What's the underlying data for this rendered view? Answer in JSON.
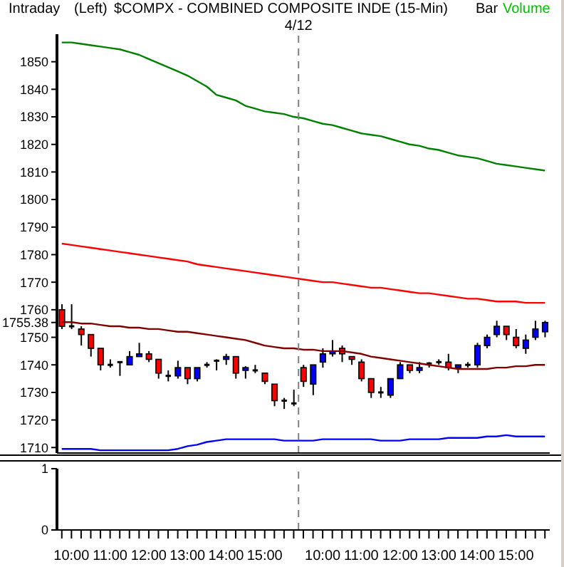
{
  "chart_data": [
    {
      "type": "candlestick",
      "title": "$COMPX - COMBINED COMPOSITE INDE  (15-Min)",
      "annotations": [
        "Intraday",
        "(Left)",
        "Bar",
        "Volume",
        "4/12"
      ],
      "categories": [
        null,
        "10:00",
        null,
        null,
        null,
        "11:00",
        null,
        null,
        null,
        "12:00",
        null,
        null,
        null,
        "13:00",
        null,
        null,
        null,
        "14:00",
        null,
        null,
        null,
        "15:00",
        null,
        null,
        null,
        null,
        null,
        "10:00",
        null,
        null,
        null,
        "11:00",
        null,
        null,
        null,
        "12:00",
        null,
        null,
        null,
        "13:00",
        null,
        null,
        null,
        "14:00",
        null,
        null,
        null,
        "15:00",
        null,
        null,
        null
      ],
      "ohlc": [
        [
          1760,
          1762,
          1753,
          1754
        ],
        [
          1754,
          1762,
          1753,
          1754
        ],
        [
          1753,
          1754,
          1747,
          1751
        ],
        [
          1751,
          1751,
          1743,
          1746
        ],
        [
          1746,
          1746,
          1738,
          1740
        ],
        [
          1740,
          1742,
          1739,
          1740
        ],
        [
          1741,
          1741,
          1736,
          1741
        ],
        [
          1740,
          1745,
          1740,
          1743
        ],
        [
          1743,
          1748,
          1743,
          1744
        ],
        [
          1744,
          1745,
          1741,
          1742
        ],
        [
          1742,
          1742,
          1735,
          1737
        ],
        [
          1736,
          1738,
          1734,
          1736
        ],
        [
          1736,
          1741.5,
          1735,
          1739
        ],
        [
          1739,
          1739,
          1733,
          1735
        ],
        [
          1735,
          1739,
          1734,
          1739
        ],
        [
          1740,
          1741,
          1739,
          1740
        ],
        [
          1741.5,
          1742,
          1738,
          1741.5
        ],
        [
          1742,
          1744,
          1740,
          1743
        ],
        [
          1743,
          1743,
          1735,
          1737
        ],
        [
          1738,
          1739.5,
          1735,
          1739
        ],
        [
          1738,
          1740,
          1737,
          1738
        ],
        [
          1737,
          1737,
          1733,
          1734
        ],
        [
          1733,
          1733,
          1725,
          1727
        ],
        [
          1727,
          1728,
          1724,
          1727
        ],
        [
          1726,
          1731,
          1725,
          1726
        ],
        [
          1739,
          1740,
          1732,
          1734
        ],
        [
          1733,
          1740,
          1729,
          1740
        ],
        [
          1741,
          1746,
          1739,
          1744
        ],
        [
          1744,
          1749,
          1743,
          1745
        ],
        [
          1746,
          1747,
          1741,
          1744
        ],
        [
          1743,
          1743,
          1740,
          1742
        ],
        [
          1741,
          1742,
          1734,
          1735
        ],
        [
          1735,
          1735,
          1728,
          1730
        ],
        [
          1730,
          1732,
          1728,
          1730
        ],
        [
          1729,
          1735,
          1728,
          1735
        ],
        [
          1735,
          1741,
          1735,
          1740
        ],
        [
          1740,
          1740,
          1737,
          1738
        ],
        [
          1738,
          1741,
          1737,
          1739
        ],
        [
          1740.5,
          1741,
          1739,
          1740.5
        ],
        [
          1741,
          1742,
          1740,
          1741
        ],
        [
          1741,
          1744,
          1738,
          1739
        ],
        [
          1739,
          1740,
          1737,
          1740
        ],
        [
          1740,
          1741,
          1739,
          1740
        ],
        [
          1740,
          1748,
          1739,
          1747
        ],
        [
          1747,
          1751,
          1746,
          1750
        ],
        [
          1751,
          1756,
          1750,
          1754
        ],
        [
          1754,
          1754,
          1749,
          1751
        ],
        [
          1750,
          1753,
          1746,
          1747
        ],
        [
          1746,
          1751,
          1744,
          1749
        ],
        [
          1750,
          1756,
          1749,
          1753
        ],
        [
          1752,
          1756,
          1750,
          1755.38
        ]
      ],
      "colors": [
        "#ff0000",
        "#000000",
        "#ff0000",
        "#ff0000",
        "#ff0000",
        "#000000",
        "#000000",
        "#0000ff",
        "#0000ff",
        "#ff0000",
        "#ff0000",
        "#000000",
        "#0000ff",
        "#ff0000",
        "#0000ff",
        "#000000",
        "#000000",
        "#0000ff",
        "#ff0000",
        "#0000ff",
        "#000000",
        "#ff0000",
        "#ff0000",
        "#000000",
        "#000000",
        "#ff0000",
        "#0000ff",
        "#0000ff",
        "#0000ff",
        "#ff0000",
        "#ff0000",
        "#ff0000",
        "#ff0000",
        "#000000",
        "#0000ff",
        "#0000ff",
        "#ff0000",
        "#0000ff",
        "#000000",
        "#000000",
        "#ff0000",
        "#0000ff",
        "#000000",
        "#0000ff",
        "#0000ff",
        "#0000ff",
        "#ff0000",
        "#ff0000",
        "#0000ff",
        "#0000ff",
        "#0000ff"
      ],
      "series": [
        {
          "type": "line",
          "color": "#008000",
          "values": [
            1857,
            1857,
            1856.5,
            1856,
            1855.5,
            1855,
            1854.5,
            1853.5,
            1852.5,
            1851,
            1849.5,
            1848,
            1846.5,
            1845,
            1843,
            1841,
            1838,
            1837,
            1836,
            1834,
            1833,
            1832,
            1831.5,
            1831,
            1830,
            1829.5,
            1828.5,
            1827.5,
            1827,
            1826,
            1825,
            1824,
            1823.5,
            1823,
            1822,
            1821,
            1820,
            1819.5,
            1818.5,
            1818,
            1817,
            1816,
            1815.5,
            1815,
            1814,
            1813,
            1812.5,
            1812,
            1811.5,
            1811,
            1810.5
          ]
        },
        {
          "type": "line",
          "color": "#ff0000",
          "values": [
            1784,
            1783.5,
            1783,
            1782.5,
            1782,
            1781.5,
            1781,
            1780.5,
            1780,
            1779.5,
            1779,
            1778.5,
            1778,
            1777.5,
            1776.5,
            1776,
            1775.5,
            1775,
            1774.5,
            1774,
            1773.5,
            1773,
            1772.5,
            1772,
            1771.5,
            1771,
            1770.5,
            1770,
            1770,
            1769.5,
            1769,
            1768.5,
            1768,
            1768,
            1767.5,
            1767,
            1766.5,
            1766,
            1766,
            1765.5,
            1765,
            1764.5,
            1764,
            1764,
            1763.5,
            1763,
            1763,
            1763,
            1762.5,
            1762.5,
            1762.5
          ]
        },
        {
          "type": "line",
          "color": "#800000",
          "values": [
            1755.5,
            1755.5,
            1755,
            1755,
            1754.5,
            1754,
            1754,
            1753.5,
            1753.5,
            1753,
            1753,
            1752.5,
            1752,
            1752,
            1751.5,
            1751,
            1750.5,
            1750,
            1749.5,
            1749,
            1748,
            1747,
            1746.5,
            1746,
            1746,
            1745.5,
            1745.5,
            1745,
            1745,
            1745,
            1744.5,
            1744,
            1743,
            1742.5,
            1742,
            1741.5,
            1741,
            1740.5,
            1740,
            1739.5,
            1739,
            1738.5,
            1738.5,
            1738.5,
            1738.5,
            1739,
            1739,
            1739.5,
            1739.5,
            1740,
            1740
          ]
        },
        {
          "type": "line",
          "color": "#0000ff",
          "values": [
            1709.5,
            1709.5,
            1709.5,
            1709.5,
            1709,
            1709,
            1709,
            1709,
            1709,
            1709,
            1709,
            1709,
            1709.5,
            1710.5,
            1711,
            1712,
            1712.5,
            1713,
            1713,
            1713,
            1713,
            1713,
            1713,
            1712.5,
            1712.5,
            1712.5,
            1712.5,
            1713,
            1713,
            1713,
            1713,
            1713,
            1713,
            1712.5,
            1712.5,
            1712.5,
            1713,
            1713,
            1713,
            1713,
            1713.5,
            1713.5,
            1713.5,
            1713.5,
            1714,
            1714,
            1714.5,
            1714,
            1714,
            1714,
            1714
          ]
        }
      ],
      "ylim": [
        1708,
        1860
      ],
      "yticks": [
        1710,
        1720,
        1730,
        1740,
        1750,
        {
          "value": 1755.38,
          "label": "1755.38"
        },
        1760,
        1770,
        1780,
        1790,
        1800,
        1810,
        1820,
        1830,
        1840,
        1850
      ],
      "tick_labels": "y"
    },
    {
      "type": "bar",
      "categories": [
        null,
        "10:00",
        null,
        null,
        null,
        "11:00",
        null,
        null,
        null,
        "12:00",
        null,
        null,
        null,
        "13:00",
        null,
        null,
        null,
        "14:00",
        null,
        null,
        null,
        "15:00",
        null,
        null,
        null,
        null,
        null,
        "10:00",
        null,
        null,
        null,
        "11:00",
        null,
        null,
        null,
        "12:00",
        null,
        null,
        null,
        "13:00",
        null,
        null,
        null,
        "14:00",
        null,
        null,
        null,
        "15:00",
        null,
        null,
        null
      ],
      "values": [
        0,
        0,
        0,
        0,
        0,
        0,
        0,
        0,
        0,
        0,
        0,
        0,
        0,
        0,
        0,
        0,
        0,
        0,
        0,
        0,
        0,
        0,
        0,
        0,
        0,
        0,
        0,
        0,
        0,
        0,
        0,
        0,
        0,
        0,
        0,
        0,
        0,
        0,
        0,
        0,
        0,
        0,
        0,
        0,
        0,
        0,
        0,
        0,
        0,
        0,
        0
      ],
      "ylim": [
        0,
        1
      ],
      "yticks": [
        0,
        1
      ]
    }
  ]
}
